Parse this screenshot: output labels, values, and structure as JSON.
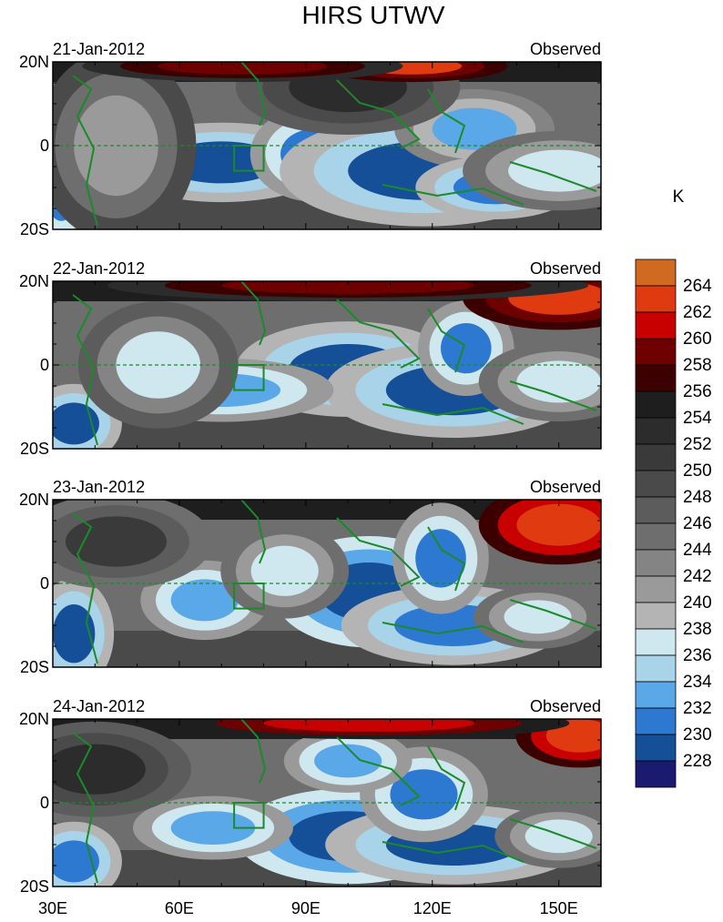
{
  "chart_data": {
    "type": "heatmap",
    "title": "HIRS UTWV",
    "colorbar_unit": "K",
    "panel_right_label": "Observed",
    "x_ticks": [
      "30E",
      "60E",
      "90E",
      "120E",
      "150E"
    ],
    "y_ticks": [
      "20N",
      "0",
      "20S"
    ],
    "xlim": [
      30,
      160
    ],
    "ylim": [
      -20,
      20
    ],
    "colorbar_ticks": [
      264,
      262,
      260,
      258,
      256,
      254,
      252,
      250,
      248,
      246,
      244,
      242,
      240,
      238,
      236,
      234,
      232,
      230,
      228
    ],
    "colorbar_colors": [
      "#d06a20",
      "#e03a10",
      "#c80000",
      "#6e0000",
      "#3c0000",
      "#1e1e1e",
      "#2c2c2c",
      "#3a3a3a",
      "#4a4a4a",
      "#5c5c5c",
      "#6e6e6e",
      "#848484",
      "#9a9a9a",
      "#b4b4b4",
      "#cfe8ef",
      "#a9d3e8",
      "#5aa8e8",
      "#2d78d0",
      "#144f98",
      "#1a1a70"
    ],
    "box_region": {
      "lon": [
        73,
        80
      ],
      "lat": [
        -6,
        0
      ]
    },
    "panels": [
      {
        "date": "21-Jan-2012",
        "blobs": [
          {
            "lon": 70,
            "lat": -4,
            "rx": 14,
            "ry": 5,
            "v": 229
          },
          {
            "lon": 92,
            "lat": -2,
            "rx": 8,
            "ry": 6,
            "v": 231
          },
          {
            "lon": 118,
            "lat": -6,
            "rx": 18,
            "ry": 7,
            "v": 229
          },
          {
            "lon": 130,
            "lat": 4,
            "rx": 10,
            "ry": 5,
            "v": 233
          },
          {
            "lon": 135,
            "lat": -10,
            "rx": 10,
            "ry": 4,
            "v": 230
          },
          {
            "lon": 32,
            "lat": -10,
            "rx": 4,
            "ry": 8,
            "v": 231
          },
          {
            "lon": 150,
            "lat": -6,
            "rx": 12,
            "ry": 5,
            "v": 236
          },
          {
            "lon": 45,
            "lat": 0,
            "rx": 10,
            "ry": 12,
            "v": 240
          },
          {
            "lon": 100,
            "lat": 14,
            "rx": 14,
            "ry": 6,
            "v": 252
          },
          {
            "lon": 115,
            "lat": 19,
            "rx": 12,
            "ry": 2,
            "v": 262
          },
          {
            "lon": 75,
            "lat": 19,
            "rx": 20,
            "ry": 2,
            "v": 259
          }
        ]
      },
      {
        "date": "22-Jan-2012",
        "blobs": [
          {
            "lon": 100,
            "lat": -1,
            "rx": 14,
            "ry": 6,
            "v": 229
          },
          {
            "lon": 125,
            "lat": -6,
            "rx": 16,
            "ry": 6,
            "v": 229
          },
          {
            "lon": 128,
            "lat": 4,
            "rx": 6,
            "ry": 6,
            "v": 231
          },
          {
            "lon": 70,
            "lat": -6,
            "rx": 14,
            "ry": 4,
            "v": 232
          },
          {
            "lon": 35,
            "lat": -14,
            "rx": 6,
            "ry": 5,
            "v": 229
          },
          {
            "lon": 150,
            "lat": -4,
            "rx": 10,
            "ry": 5,
            "v": 236
          },
          {
            "lon": 55,
            "lat": 0,
            "rx": 10,
            "ry": 8,
            "v": 237
          },
          {
            "lon": 150,
            "lat": 16,
            "rx": 12,
            "ry": 4,
            "v": 262
          },
          {
            "lon": 100,
            "lat": 19,
            "rx": 30,
            "ry": 2,
            "v": 259
          }
        ]
      },
      {
        "date": "23-Jan-2012",
        "blobs": [
          {
            "lon": 105,
            "lat": -2,
            "rx": 12,
            "ry": 7,
            "v": 228
          },
          {
            "lon": 125,
            "lat": -10,
            "rx": 14,
            "ry": 5,
            "v": 230
          },
          {
            "lon": 122,
            "lat": 6,
            "rx": 6,
            "ry": 7,
            "v": 231
          },
          {
            "lon": 66,
            "lat": -4,
            "rx": 8,
            "ry": 5,
            "v": 232
          },
          {
            "lon": 35,
            "lat": -12,
            "rx": 5,
            "ry": 7,
            "v": 229
          },
          {
            "lon": 145,
            "lat": -8,
            "rx": 8,
            "ry": 4,
            "v": 236
          },
          {
            "lon": 85,
            "lat": 3,
            "rx": 8,
            "ry": 6,
            "v": 236
          },
          {
            "lon": 150,
            "lat": 14,
            "rx": 10,
            "ry": 5,
            "v": 263
          },
          {
            "lon": 45,
            "lat": 10,
            "rx": 12,
            "ry": 6,
            "v": 250
          }
        ]
      },
      {
        "date": "24-Jan-2012",
        "blobs": [
          {
            "lon": 100,
            "lat": -8,
            "rx": 14,
            "ry": 6,
            "v": 228
          },
          {
            "lon": 125,
            "lat": -10,
            "rx": 16,
            "ry": 5,
            "v": 229
          },
          {
            "lon": 118,
            "lat": 2,
            "rx": 8,
            "ry": 6,
            "v": 231
          },
          {
            "lon": 68,
            "lat": -6,
            "rx": 10,
            "ry": 4,
            "v": 232
          },
          {
            "lon": 100,
            "lat": 10,
            "rx": 8,
            "ry": 4,
            "v": 232
          },
          {
            "lon": 35,
            "lat": -14,
            "rx": 6,
            "ry": 5,
            "v": 230
          },
          {
            "lon": 150,
            "lat": -8,
            "rx": 8,
            "ry": 4,
            "v": 236
          },
          {
            "lon": 155,
            "lat": 16,
            "rx": 8,
            "ry": 4,
            "v": 263
          },
          {
            "lon": 105,
            "lat": 19,
            "rx": 25,
            "ry": 2,
            "v": 261
          },
          {
            "lon": 40,
            "lat": 8,
            "rx": 12,
            "ry": 6,
            "v": 252
          }
        ]
      }
    ]
  }
}
